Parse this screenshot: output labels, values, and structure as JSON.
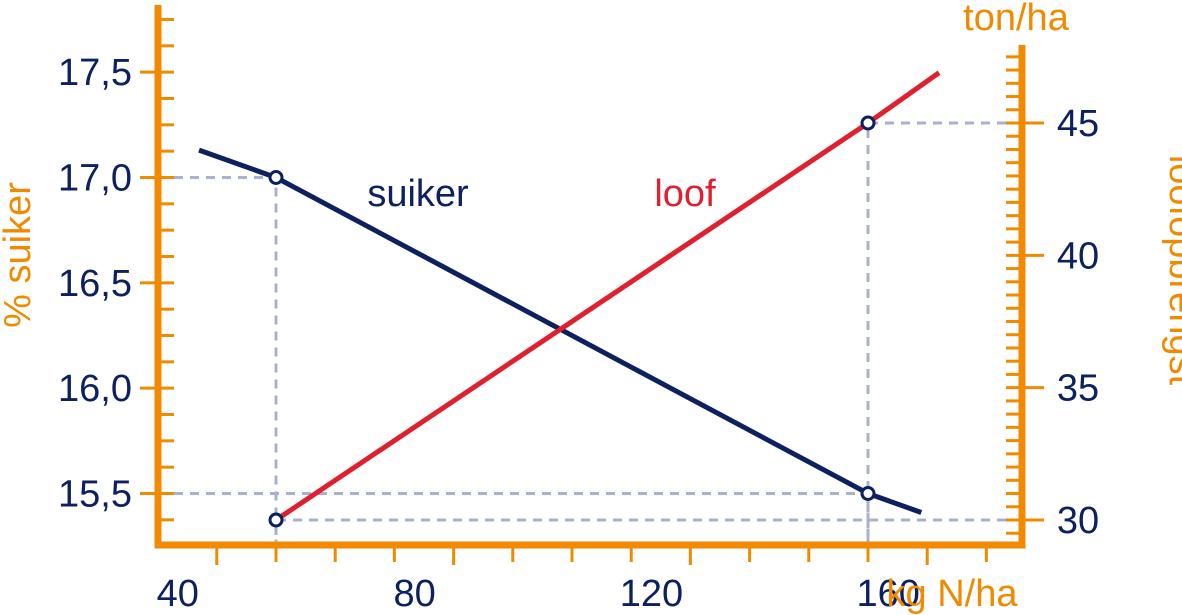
{
  "chart_data": {
    "type": "line",
    "x": {
      "label": "kg N/ha",
      "ticks": [
        40,
        80,
        120,
        160
      ],
      "range": [
        20,
        200
      ],
      "minor_step": 10
    },
    "y_left": {
      "label": "% suiker",
      "ticks": [
        "15,5",
        "16,0",
        "16,5",
        "17,0",
        "17,5"
      ],
      "tick_values": [
        15.5,
        16.0,
        16.5,
        17.0,
        17.5
      ],
      "range": [
        15.25,
        17.75
      ],
      "minor_step": 0.125
    },
    "y_right": {
      "label": "loofopbrengst",
      "unit": "ton/ha",
      "ticks": [
        "30",
        "35",
        "40",
        "45"
      ],
      "tick_values": [
        30,
        35,
        40,
        45
      ],
      "range": [
        29.5,
        48
      ],
      "minor_step": 1
    },
    "series": [
      {
        "name": "suiker",
        "axis": "left",
        "color": "#0d2160",
        "x": [
          37,
          50,
          150,
          159
        ],
        "y": [
          17.13,
          17.0,
          15.5,
          15.41
        ],
        "markers": [
          {
            "x": 50,
            "y": 17.0
          },
          {
            "x": 150,
            "y": 15.5
          }
        ]
      },
      {
        "name": "loof",
        "axis": "right",
        "color": "#e0202e",
        "x": [
          50,
          150,
          162
        ],
        "y": [
          30.0,
          45.0,
          46.9
        ],
        "markers": [
          {
            "x": 50,
            "y": 30.0
          },
          {
            "x": 150,
            "y": 45.0
          }
        ]
      }
    ],
    "guide_lines": [
      {
        "from": "left",
        "x": 50,
        "y": 17.0
      },
      {
        "from": "left",
        "x": 150,
        "y": 15.5
      },
      {
        "from": "right",
        "x": 150,
        "y": 45.0
      },
      {
        "from": "right",
        "x": 50,
        "y": 30.0
      }
    ],
    "colors": {
      "axis": "#f18a00",
      "tick_text": "#0d2160",
      "guide": "#a9b1cc"
    }
  }
}
